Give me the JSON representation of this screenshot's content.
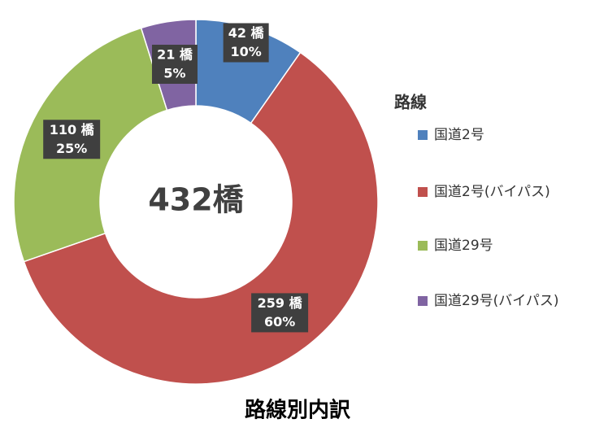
{
  "chart_data": {
    "type": "donut",
    "title": "路線別内訳",
    "center_label": "432橋",
    "legend_title": "路線",
    "categories": [
      "国道2号",
      "国道2号(バイパス)",
      "国道29号",
      "国道29号(バイパス)"
    ],
    "values": [
      42,
      259,
      110,
      21
    ],
    "value_labels": [
      "42 橋",
      "259 橋",
      "110 橋",
      "21 橋"
    ],
    "percent_labels": [
      "10%",
      "60%",
      "25%",
      "5%"
    ],
    "colors": [
      "#4f81bd",
      "#c0504d",
      "#9bbb59",
      "#8064a2"
    ],
    "legend": "right"
  }
}
